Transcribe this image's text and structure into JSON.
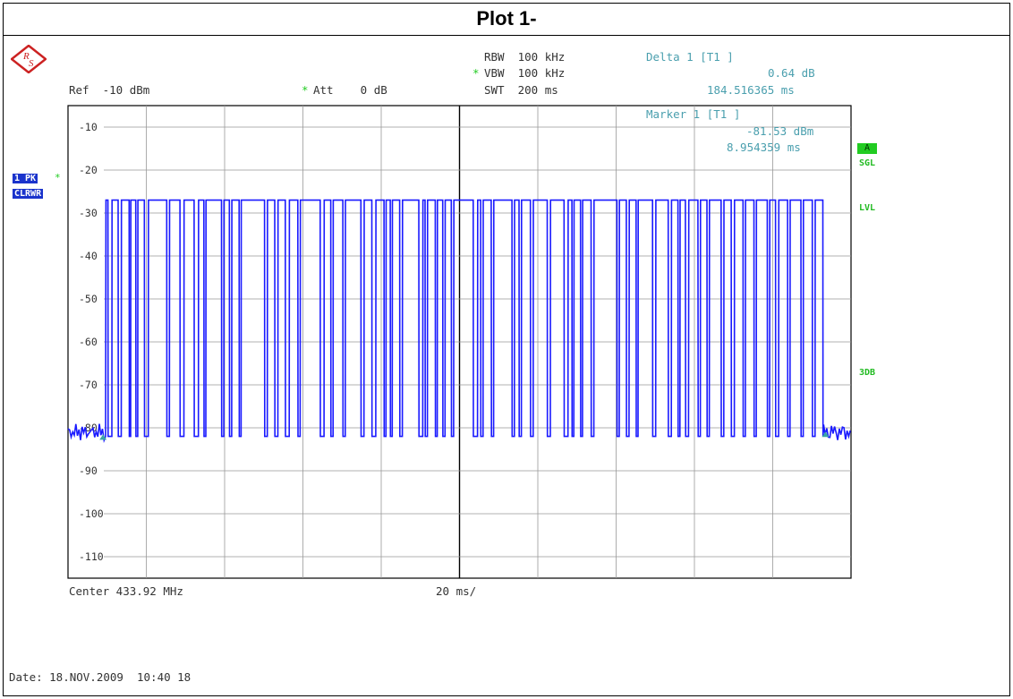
{
  "title": "Plot 1-",
  "header": {
    "rbw": "RBW  100 kHz",
    "vbw": "VBW  100 kHz",
    "swt": "SWT  200 ms",
    "ref": "Ref  -10 dBm",
    "att": "Att    0 dB",
    "delta_label": "Delta 1 [T1 ]",
    "delta_value": "0.64 dB",
    "delta_time": "184.516365 ms",
    "marker_label": "Marker 1 [T1 ]",
    "marker_value": "-81.53 dBm",
    "marker_time": "8.954359 ms"
  },
  "trace": {
    "pk": "1 PK",
    "mode": "CLRWR"
  },
  "side_labels": {
    "a": "A",
    "sgl": "SGL",
    "lvl": "LVL",
    "db3": "3DB"
  },
  "footer": {
    "center": "Center 433.92 MHz",
    "span": "20 ms/",
    "date": "Date: 18.NOV.2009  10:40 18"
  },
  "colors": {
    "trace": "#1a1aff",
    "grid": "#999999",
    "cyan": "#4a9fae",
    "green": "#22bb22"
  },
  "icons": {
    "logo": "rohde-schwarz-logo",
    "marker": "marker-triangle-icon"
  },
  "chart_data": {
    "type": "line",
    "title": "",
    "xlabel": "",
    "ylabel": "",
    "xlim": [
      0,
      200
    ],
    "ylim": [
      -115,
      -5
    ],
    "ytick_labels": [
      "-10",
      "-20",
      "-30",
      "-40",
      "-50",
      "-60",
      "-70",
      "-80",
      "-90",
      "-100",
      "-110"
    ],
    "ytick_values": [
      -10,
      -20,
      -30,
      -40,
      -50,
      -60,
      -70,
      -80,
      -90,
      -100,
      -110
    ],
    "grid": true,
    "noise_floor_dbm": -81,
    "high_level_dbm": -27,
    "pulse_low_dbm": -82,
    "markers": [
      {
        "name": "1",
        "x_ms": 8.954359,
        "y_dbm": -81.53
      },
      {
        "name": "D1",
        "x_ms": 193.47,
        "y_dbm": -80.89
      }
    ],
    "gaps_ms": [
      [
        10.2,
        11.2
      ],
      [
        12.8,
        13.6
      ],
      [
        15.6,
        16.0
      ],
      [
        17.3,
        17.8
      ],
      [
        19.5,
        20.5
      ],
      [
        25.2,
        25.9
      ],
      [
        28.6,
        29.6
      ],
      [
        32.2,
        33.3
      ],
      [
        34.7,
        35.2
      ],
      [
        39.2,
        39.8
      ],
      [
        41.2,
        41.8
      ],
      [
        43.7,
        44.2
      ],
      [
        50.2,
        50.9
      ],
      [
        52.8,
        53.6
      ],
      [
        55.5,
        56.5
      ],
      [
        58.7,
        59.3
      ],
      [
        64.4,
        65.4
      ],
      [
        67.1,
        67.7
      ],
      [
        70.2,
        70.8
      ],
      [
        74.8,
        75.6
      ],
      [
        77.6,
        78.6
      ],
      [
        80.7,
        81.2
      ],
      [
        82.3,
        82.8
      ],
      [
        84.7,
        85.4
      ],
      [
        89.6,
        90.6
      ],
      [
        91.2,
        91.8
      ],
      [
        93.8,
        94.3
      ],
      [
        95.7,
        96.3
      ],
      [
        97.9,
        98.5
      ],
      [
        103.5,
        104.6
      ],
      [
        105.4,
        106.0
      ],
      [
        108.1,
        108.7
      ],
      [
        113.4,
        114.0
      ],
      [
        115.2,
        115.8
      ],
      [
        118.1,
        118.8
      ],
      [
        122.4,
        123.2
      ],
      [
        126.7,
        127.7
      ],
      [
        128.7,
        129.2
      ],
      [
        130.9,
        131.4
      ],
      [
        133.6,
        134.3
      ],
      [
        140.2,
        140.8
      ],
      [
        142.6,
        143.3
      ],
      [
        145.1,
        145.6
      ],
      [
        149.3,
        150.1
      ],
      [
        153.3,
        154.1
      ],
      [
        155.8,
        156.3
      ],
      [
        157.7,
        158.5
      ],
      [
        160.9,
        161.5
      ],
      [
        163.2,
        163.8
      ],
      [
        166.8,
        167.5
      ],
      [
        169.4,
        170.2
      ],
      [
        172.4,
        173.0
      ],
      [
        175.2,
        175.8
      ],
      [
        178.6,
        179.2
      ],
      [
        180.7,
        181.5
      ],
      [
        183.8,
        184.4
      ],
      [
        187.2,
        187.8
      ],
      [
        190.1,
        190.8
      ]
    ],
    "signal_start_ms": 9.6,
    "signal_end_ms": 192.8
  }
}
